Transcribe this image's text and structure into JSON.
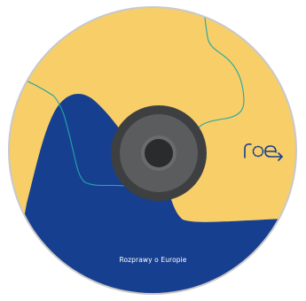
{
  "disc": {
    "title": "Rozprawy o Europie",
    "logo_name": "roe-logo-icon"
  },
  "colors": {
    "yellow": "#F7CE68",
    "blue": "#173F8F",
    "teal_line": "#22A6A6",
    "outer_rim": "#C7C9CC",
    "hub_dark": "#3E3F41",
    "hub_mid": "#5B5C5E",
    "hub_center": "#1F2021",
    "title_text": "#FFFFFF"
  }
}
